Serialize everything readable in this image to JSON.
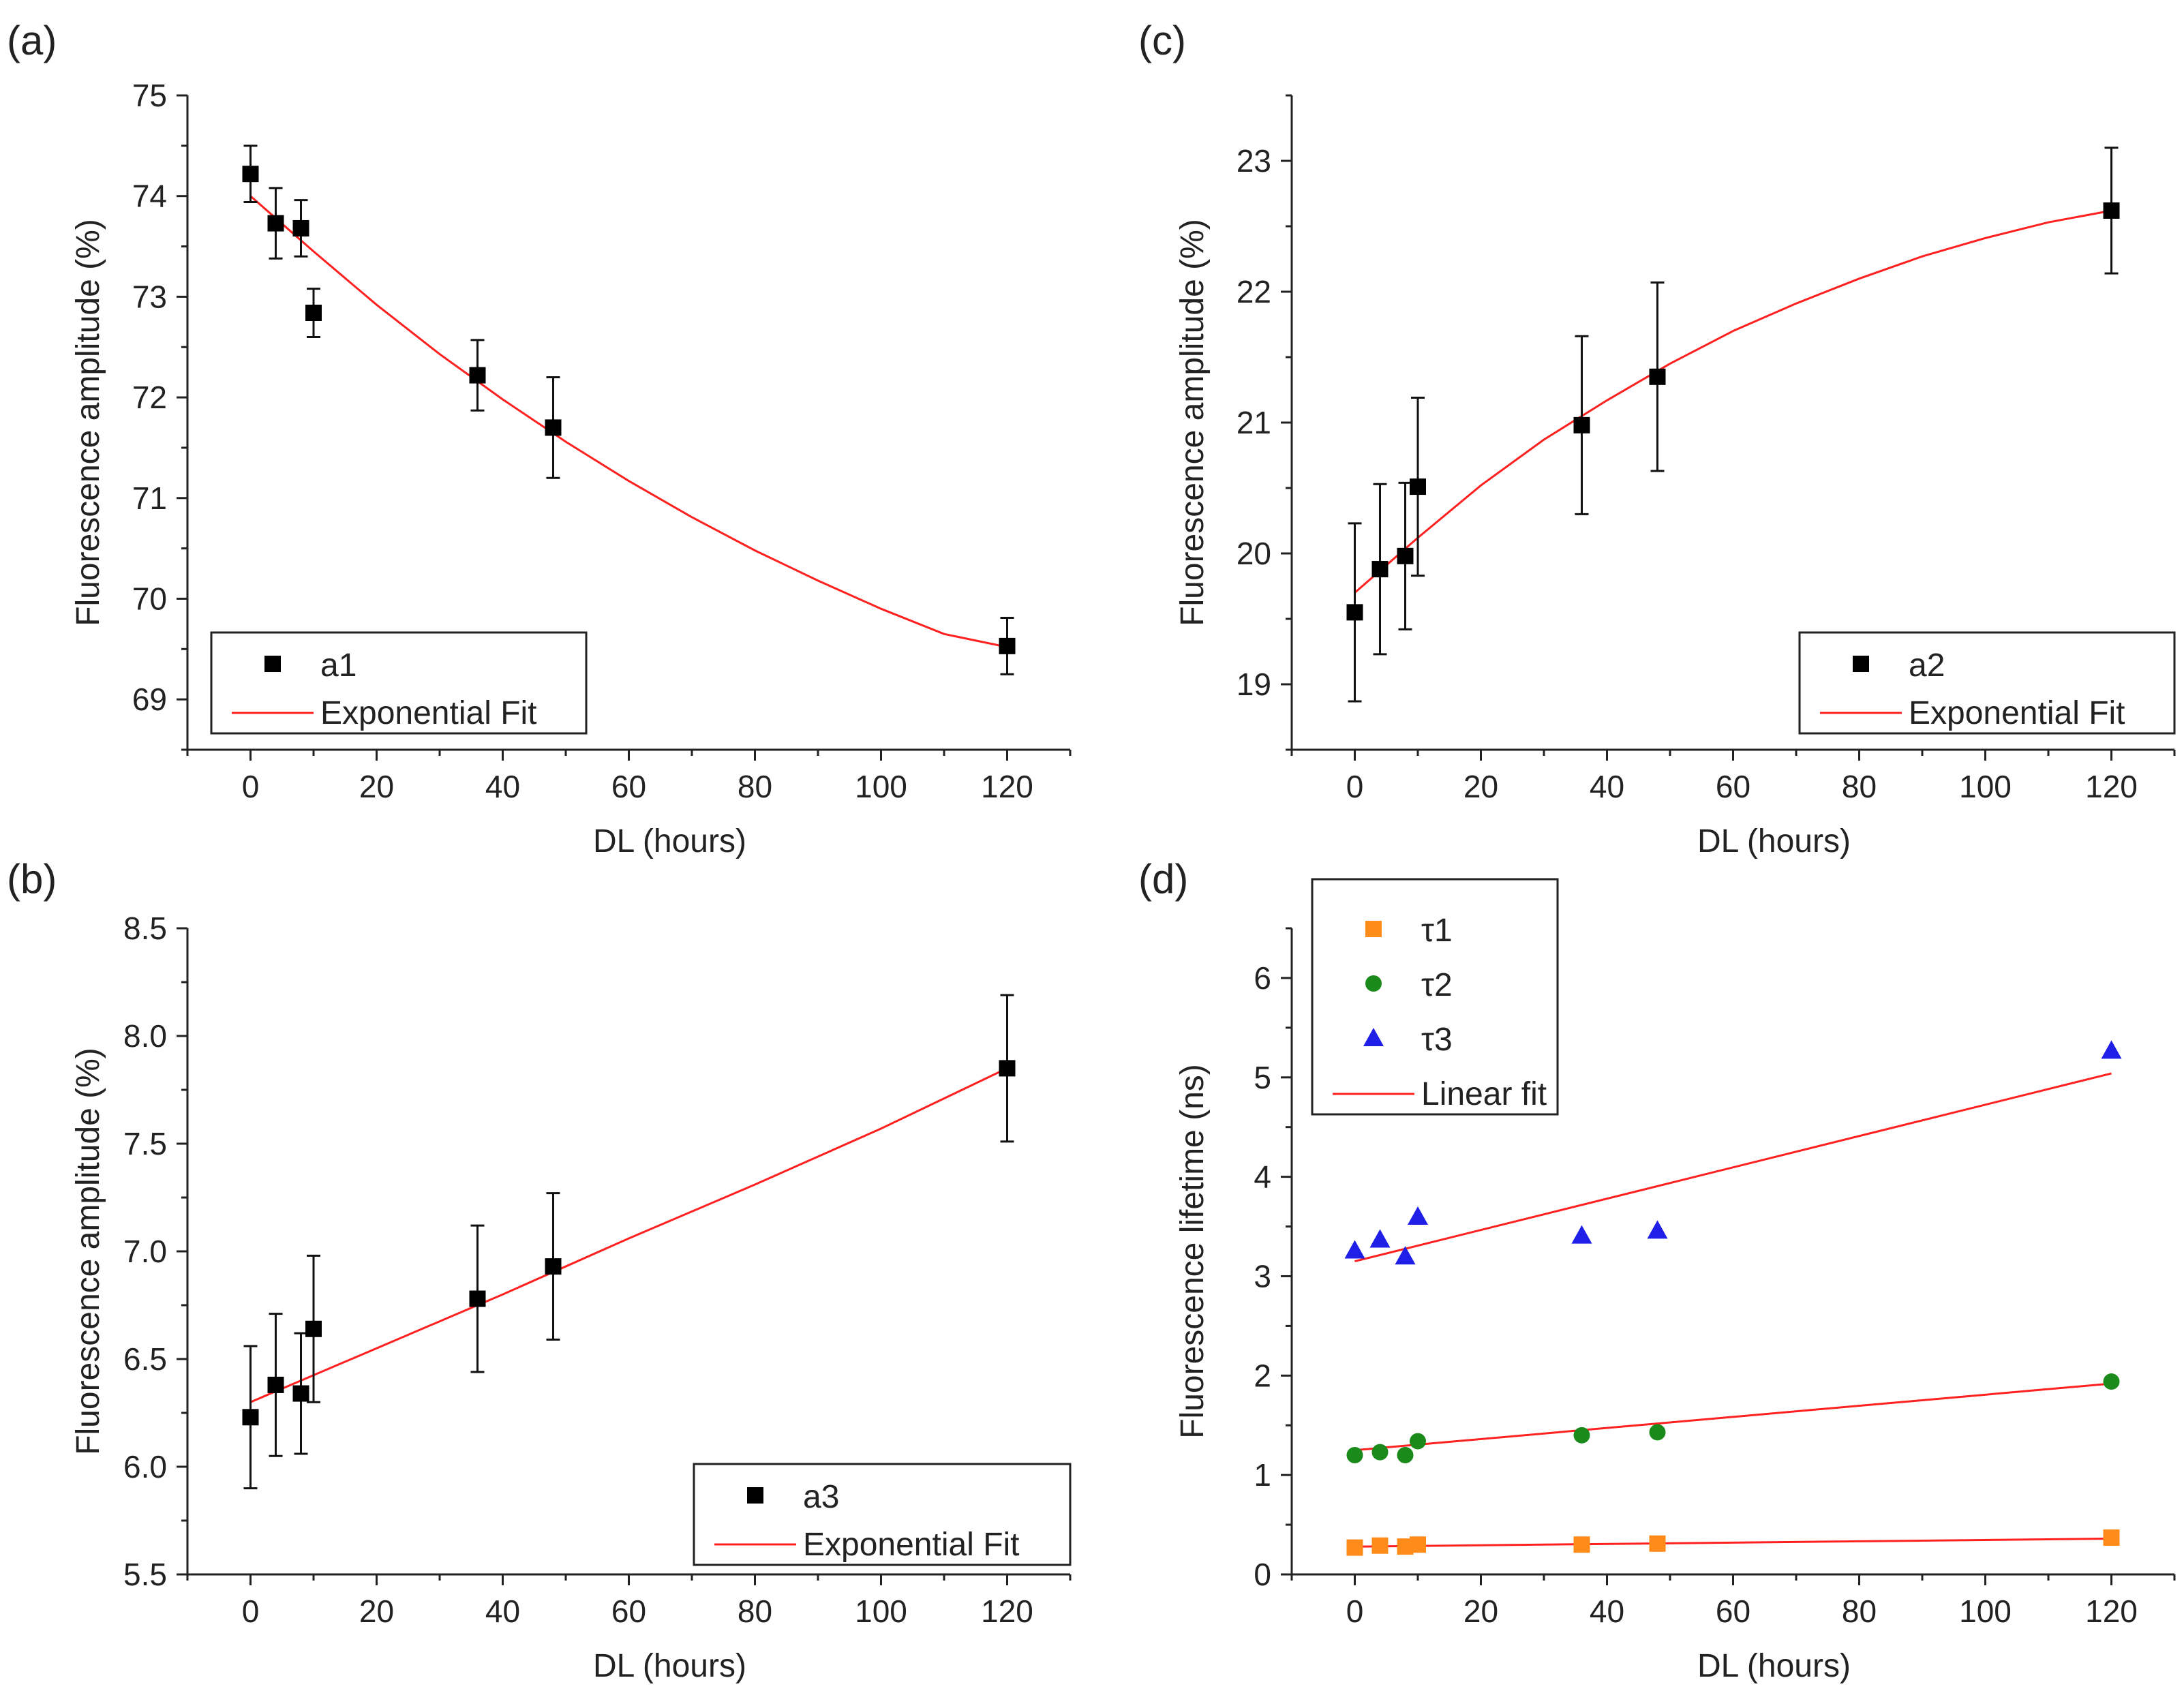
{
  "chart_data": [
    {
      "id": "a",
      "panel_label": "(a)",
      "type": "scatter",
      "xlabel": "DL (hours)",
      "ylabel": "Fluorescence amplitude (%)",
      "xlim": [
        -10,
        130
      ],
      "ylim": [
        68.5,
        75
      ],
      "xticks": [
        0,
        20,
        40,
        60,
        80,
        100,
        120
      ],
      "yticks": [
        69,
        70,
        71,
        72,
        73,
        74,
        75
      ],
      "legend_position": "bottom-left",
      "series": [
        {
          "name": "a1",
          "marker": "square",
          "color": "#000000",
          "x": [
            0,
            4,
            8,
            10,
            36,
            48,
            120
          ],
          "y": [
            74.22,
            73.73,
            73.68,
            72.84,
            72.22,
            71.7,
            69.53
          ],
          "err": [
            0.28,
            0.35,
            0.28,
            0.24,
            0.35,
            0.5,
            0.28
          ]
        }
      ],
      "fits": [
        {
          "name": "Exponential Fit",
          "color": "#ff2020",
          "x": [
            0,
            10,
            20,
            30,
            40,
            50,
            60,
            70,
            80,
            90,
            100,
            110,
            120
          ],
          "y": [
            74.0,
            73.45,
            72.92,
            72.43,
            71.98,
            71.56,
            71.17,
            70.81,
            70.48,
            70.18,
            69.9,
            69.65,
            69.52
          ]
        }
      ]
    },
    {
      "id": "b",
      "panel_label": "(b)",
      "type": "scatter",
      "xlabel": "DL (hours)",
      "ylabel": "Fluorescence amplitude (%)",
      "xlim": [
        -10,
        130
      ],
      "ylim": [
        5.5,
        8.5
      ],
      "xticks": [
        0,
        20,
        40,
        60,
        80,
        100,
        120
      ],
      "yticks": [
        "5.5",
        "6.0",
        "6.5",
        "7.0",
        "7.5",
        "8.0",
        "8.5"
      ],
      "legend_position": "bottom-right",
      "series": [
        {
          "name": "a3",
          "marker": "square",
          "color": "#000000",
          "x": [
            0,
            4,
            8,
            10,
            36,
            48,
            120
          ],
          "y": [
            6.23,
            6.38,
            6.34,
            6.64,
            6.78,
            6.93,
            7.85
          ],
          "err": [
            0.33,
            0.33,
            0.28,
            0.34,
            0.34,
            0.34,
            0.34
          ]
        }
      ],
      "fits": [
        {
          "name": "Exponential Fit",
          "color": "#ff2020",
          "x": [
            0,
            20,
            40,
            60,
            80,
            100,
            120
          ],
          "y": [
            6.3,
            6.55,
            6.8,
            7.06,
            7.31,
            7.57,
            7.85
          ]
        }
      ]
    },
    {
      "id": "c",
      "panel_label": "(c)",
      "type": "scatter",
      "xlabel": "DL (hours)",
      "ylabel": "Fluorescence amplitude (%)",
      "xlim": [
        -10,
        130
      ],
      "ylim": [
        18.5,
        23.5
      ],
      "xticks": [
        0,
        20,
        40,
        60,
        80,
        100,
        120
      ],
      "yticks": [
        19,
        20,
        21,
        22,
        23
      ],
      "legend_position": "bottom-right",
      "series": [
        {
          "name": "a2",
          "marker": "square",
          "color": "#000000",
          "x": [
            0,
            4,
            8,
            10,
            36,
            48,
            120
          ],
          "y": [
            19.55,
            19.88,
            19.98,
            20.51,
            20.98,
            21.35,
            22.62
          ],
          "err": [
            0.68,
            0.65,
            0.56,
            0.68,
            0.68,
            0.72,
            0.48
          ]
        }
      ],
      "fits": [
        {
          "name": "Exponential Fit",
          "color": "#ff2020",
          "x": [
            0,
            10,
            20,
            30,
            40,
            50,
            60,
            70,
            80,
            90,
            100,
            110,
            120
          ],
          "y": [
            19.7,
            20.12,
            20.52,
            20.87,
            21.17,
            21.45,
            21.7,
            21.91,
            22.1,
            22.27,
            22.41,
            22.53,
            22.62
          ]
        }
      ]
    },
    {
      "id": "d",
      "panel_label": "(d)",
      "type": "scatter",
      "xlabel": "DL (hours)",
      "ylabel": "Fluorescence lifetime (ns)",
      "xlim": [
        -10,
        130
      ],
      "ylim": [
        0,
        6.5
      ],
      "xticks": [
        0,
        20,
        40,
        60,
        80,
        100,
        120
      ],
      "yticks": [
        0,
        1,
        2,
        3,
        4,
        5,
        6
      ],
      "legend_position": "top-left",
      "series": [
        {
          "name": "τ1",
          "marker": "square",
          "color": "#ff8c1a",
          "x": [
            0,
            4,
            8,
            10,
            36,
            48,
            120
          ],
          "y": [
            0.27,
            0.29,
            0.28,
            0.3,
            0.3,
            0.31,
            0.37
          ]
        },
        {
          "name": "τ2",
          "marker": "circle",
          "color": "#1a8a1a",
          "x": [
            0,
            4,
            8,
            10,
            36,
            48,
            120
          ],
          "y": [
            1.2,
            1.23,
            1.2,
            1.34,
            1.4,
            1.43,
            1.94
          ]
        },
        {
          "name": "τ3",
          "marker": "triangle",
          "color": "#1f1fe8",
          "x": [
            0,
            4,
            8,
            10,
            36,
            48,
            120
          ],
          "y": [
            3.26,
            3.37,
            3.2,
            3.6,
            3.41,
            3.46,
            5.27
          ]
        }
      ],
      "fits": [
        {
          "name": "Linear fit",
          "color": "#ff2020",
          "x": [
            0,
            120
          ],
          "y": [
            0.28,
            0.36
          ]
        },
        {
          "name": "",
          "color": "#ff2020",
          "x": [
            0,
            120
          ],
          "y": [
            1.25,
            1.92
          ]
        },
        {
          "name": "",
          "color": "#ff2020",
          "x": [
            0,
            120
          ],
          "y": [
            3.15,
            5.04
          ]
        }
      ]
    }
  ]
}
